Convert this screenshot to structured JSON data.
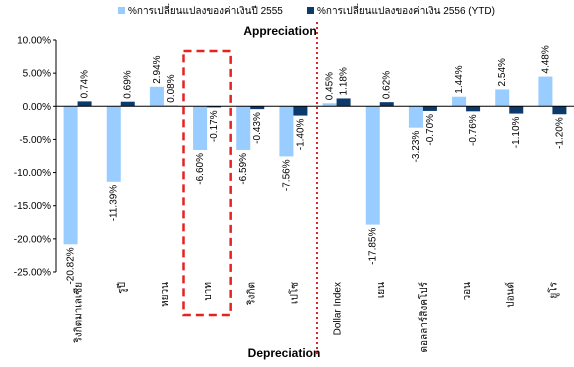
{
  "chart_data": {
    "type": "bar",
    "title": "",
    "xlabel": "",
    "ylabel": "",
    "ylim": [
      -25,
      10
    ],
    "yticks": [
      -25,
      -20,
      -15,
      -10,
      -5,
      0,
      5,
      10
    ],
    "ytick_labels": [
      "-25.00%",
      "-20.00%",
      "-15.00%",
      "-10.00%",
      "-5.00%",
      "0.00%",
      "5.00%",
      "10.00%"
    ],
    "grid": false,
    "legend_position": "top",
    "categories": [
      "ริงกิตมาเลเซีย",
      "รูปี",
      "หยวน",
      "บาท",
      "ริงกิต",
      "เปโซ",
      "Dollar Index",
      "เยน",
      "ดอลลาร์สิงคโปร์",
      "วอน",
      "ปอนด์",
      "ยูโร"
    ],
    "series": [
      {
        "name": "%การเปลี่ยนแปลงของค่าเงินปี 2555",
        "color": "#99ccff",
        "values": [
          -20.82,
          -11.39,
          2.94,
          -6.6,
          -6.59,
          -7.56,
          0.45,
          -17.85,
          -3.23,
          1.44,
          2.54,
          4.48
        ],
        "labels": [
          "-20.82%",
          "-11.39%",
          "2.94%",
          "-6.60%",
          "-6.59%",
          "-7.56%",
          "0.45%",
          "-17.85%",
          "-3.23%",
          "1.44%",
          "2.54%",
          "4.48%"
        ]
      },
      {
        "name": "%การเปลี่ยนแปลงของค่าเงิน 2556 (YTD)",
        "color": "#0b3a6b",
        "values": [
          0.74,
          0.69,
          0.08,
          -0.17,
          -0.43,
          -1.4,
          1.18,
          0.62,
          -0.7,
          -0.76,
          -1.1,
          -1.2
        ],
        "labels": [
          "0.74%",
          "0.69%",
          "0.08%",
          "-0.17%",
          "-0.43%",
          "-1.40%",
          "1.18%",
          "0.62%",
          "-0.70%",
          "-0.76%",
          "-1.10%",
          "-1.20%"
        ]
      }
    ],
    "annotations": {
      "top": "Appreciation",
      "bottom": "Depreciation"
    },
    "highlight_category": "บาท"
  }
}
